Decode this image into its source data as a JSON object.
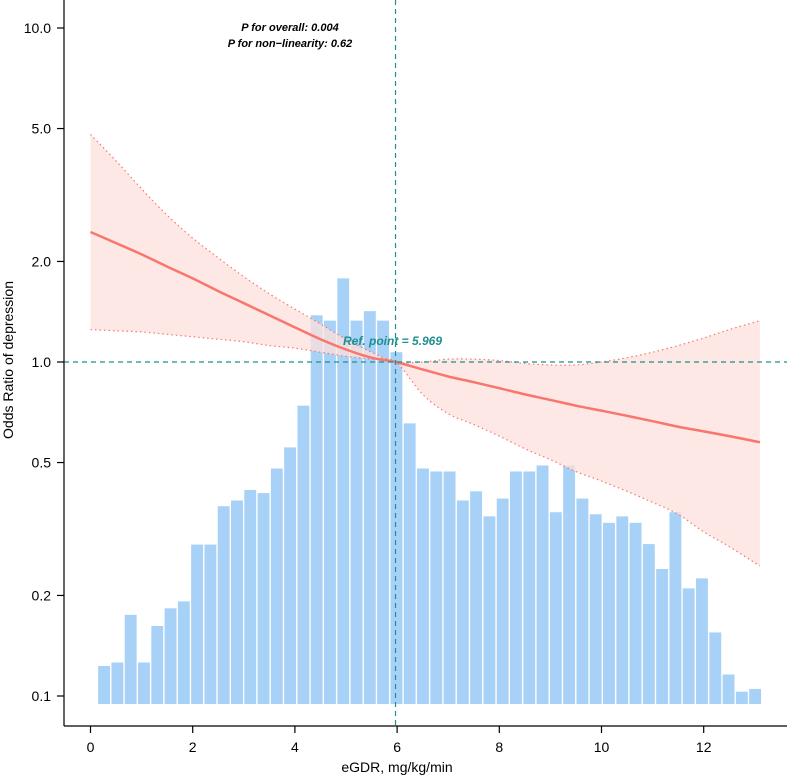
{
  "chart_data": {
    "type": "line+histogram",
    "title": "",
    "xlabel": "eGDR, mg/kg/min",
    "ylabel": "Odds Ratio of depression",
    "xlim": [
      -0.5,
      13.3
    ],
    "ylim": [
      0.085,
      11.5
    ],
    "y_scale": "log",
    "x_ticks": [
      0,
      2,
      4,
      6,
      8,
      10,
      12
    ],
    "x_tick_labels": [
      "0",
      "2",
      "4",
      "6",
      "8",
      "10",
      "12"
    ],
    "y_ticks": [
      0.1,
      0.2,
      0.5,
      1.0,
      2.0,
      5.0,
      10.0
    ],
    "y_tick_labels": [
      "0.1",
      "0.2",
      "0.5",
      "1.0",
      "2.0",
      "5.0",
      "10.0"
    ],
    "annotations": {
      "p_overall": "P for overall: 0.004",
      "p_nonlinearity": "P for non−linearity: 0.62",
      "ref_point": "Ref. point = 5.969"
    },
    "ref_x": 5.969,
    "ref_y": 1.0,
    "colors": {
      "line": "#f8766d",
      "band": "#fde0dc",
      "histogram": "#a8d1f7",
      "reference": "#1f8f8f"
    },
    "spline": {
      "x": [
        0,
        0.5,
        1,
        1.5,
        2,
        2.5,
        3,
        3.5,
        4,
        4.5,
        5,
        5.5,
        5.969,
        6.5,
        7,
        7.5,
        8,
        8.5,
        9,
        9.5,
        10,
        10.5,
        11,
        11.5,
        12,
        12.5,
        13.1
      ],
      "or": [
        2.45,
        2.27,
        2.1,
        1.93,
        1.78,
        1.63,
        1.5,
        1.38,
        1.27,
        1.17,
        1.09,
        1.03,
        1.0,
        0.95,
        0.905,
        0.87,
        0.835,
        0.8,
        0.77,
        0.74,
        0.715,
        0.69,
        0.665,
        0.64,
        0.62,
        0.6,
        0.575
      ],
      "lower": [
        1.25,
        1.24,
        1.23,
        1.21,
        1.19,
        1.17,
        1.15,
        1.12,
        1.1,
        1.07,
        1.04,
        1.02,
        1.0,
        0.8,
        0.7,
        0.65,
        0.6,
        0.55,
        0.51,
        0.47,
        0.44,
        0.41,
        0.38,
        0.35,
        0.31,
        0.28,
        0.245
      ],
      "upper": [
        4.8,
        4.0,
        3.3,
        2.75,
        2.35,
        2.05,
        1.8,
        1.6,
        1.44,
        1.3,
        1.17,
        1.07,
        1.0,
        1.0,
        1.02,
        1.02,
        1.01,
        0.99,
        0.98,
        0.98,
        1.0,
        1.03,
        1.07,
        1.12,
        1.18,
        1.25,
        1.33
      ]
    },
    "histogram": {
      "bin_width": 0.26,
      "bin_start": 0.15,
      "heights": [
        0.123,
        0.126,
        0.175,
        0.126,
        0.162,
        0.183,
        0.192,
        0.284,
        0.284,
        0.37,
        0.385,
        0.414,
        0.405,
        0.48,
        0.555,
        0.74,
        1.38,
        1.33,
        1.78,
        1.33,
        1.42,
        1.33,
        1.07,
        0.655,
        0.48,
        0.47,
        0.47,
        0.385,
        0.41,
        0.345,
        0.39,
        0.47,
        0.47,
        0.49,
        0.355,
        0.49,
        0.39,
        0.35,
        0.33,
        0.345,
        0.33,
        0.285,
        0.24,
        0.355,
        0.21,
        0.225,
        0.155,
        0.116,
        0.103,
        0.105
      ]
    }
  }
}
